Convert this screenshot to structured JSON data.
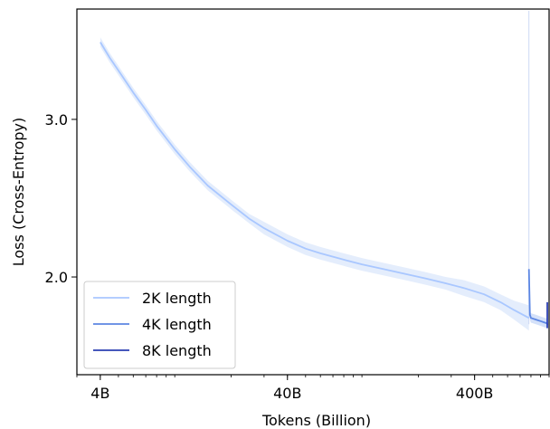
{
  "chart_data": {
    "type": "line",
    "xlabel": "Tokens (Billion)",
    "ylabel": "Loss (Cross-Entropy)",
    "xscale": "log",
    "xlim": [
      3.0,
      1000
    ],
    "ylim": [
      1.38,
      3.7
    ],
    "xticks": [
      {
        "value": 4,
        "label": "4B"
      },
      {
        "value": 40,
        "label": "40B"
      },
      {
        "value": 400,
        "label": "400B"
      }
    ],
    "yticks": [
      {
        "value": 2.0,
        "label": "2.0"
      },
      {
        "value": 3.0,
        "label": "3.0"
      }
    ],
    "legend_position": "lower-left",
    "series": [
      {
        "name": "2K length",
        "color": "#a9c7ff",
        "band_color": "#dde8fb",
        "x": [
          4,
          4.5,
          5,
          6,
          7,
          8,
          10,
          12,
          15,
          20,
          25,
          30,
          40,
          50,
          60,
          80,
          100,
          130,
          170,
          220,
          280,
          350,
          450,
          550,
          650,
          780
        ],
        "y": [
          3.49,
          3.39,
          3.31,
          3.17,
          3.06,
          2.96,
          2.81,
          2.7,
          2.58,
          2.46,
          2.37,
          2.31,
          2.23,
          2.18,
          2.15,
          2.11,
          2.08,
          2.05,
          2.02,
          1.99,
          1.96,
          1.93,
          1.89,
          1.84,
          1.79,
          1.74
        ],
        "band": [
          0.03,
          0.03,
          0.03,
          0.03,
          0.03,
          0.03,
          0.03,
          0.03,
          0.03,
          0.03,
          0.03,
          0.04,
          0.04,
          0.04,
          0.04,
          0.04,
          0.04,
          0.04,
          0.04,
          0.04,
          0.04,
          0.05,
          0.05,
          0.05,
          0.06,
          0.08
        ]
      },
      {
        "name": "4K length",
        "color": "#5b86e3",
        "band_color": "#c9d9f7",
        "x": [
          780,
          790,
          800,
          850,
          900,
          950,
          1000,
          1050,
          1100
        ],
        "y": [
          2.05,
          1.76,
          1.74,
          1.73,
          1.72,
          1.71,
          1.705,
          1.7,
          1.695
        ],
        "band": [
          0.0,
          0.03,
          0.03,
          0.03,
          0.03,
          0.03,
          0.03,
          0.03,
          0.03
        ]
      },
      {
        "name": "8K length",
        "color": "#2b3fb3",
        "band_color": "#b7c4ee",
        "x": [
          1100,
          1110,
          1150,
          1200,
          1250
        ],
        "y": [
          1.84,
          1.71,
          1.7,
          1.685,
          1.675
        ],
        "band": [
          0.0,
          0.02,
          0.02,
          0.02,
          0.02
        ]
      }
    ]
  }
}
